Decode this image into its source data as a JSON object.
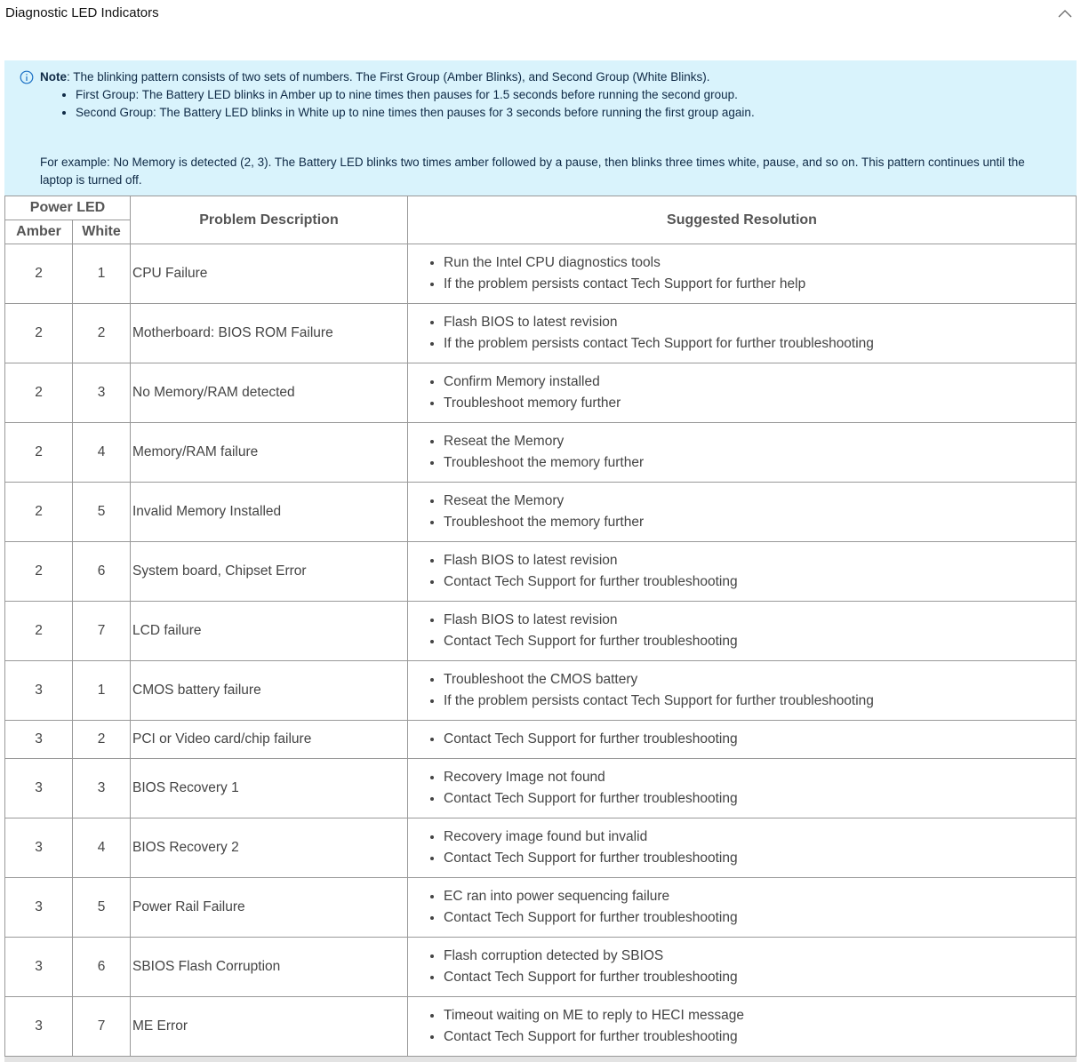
{
  "section": {
    "title": "Diagnostic LED Indicators",
    "collapse_icon": "chevron-up-icon"
  },
  "note": {
    "label": "Note",
    "text": ": The blinking pattern consists of two sets of numbers. The First Group (Amber Blinks), and Second Group (White Blinks).",
    "bullets": [
      "First Group: The Battery LED blinks in Amber up to nine times then pauses for 1.5 seconds before running the second group.",
      "Second Group: The Battery LED blinks in White up to nine times then pauses for 3 seconds before running the first group again."
    ],
    "example": "For example: No Memory is detected (2, 3). The Battery LED blinks two times amber followed by a pause, then blinks three times white, pause, and so on. This pattern continues until the laptop is turned off.",
    "icon": "info-icon",
    "background": "#d9f3fc"
  },
  "table": {
    "headers": {
      "power_led": "Power LED",
      "amber": "Amber",
      "white": "White",
      "problem": "Problem Description",
      "resolution": "Suggested Resolution"
    },
    "rows": [
      {
        "amber": "2",
        "white": "1",
        "problem": "CPU Failure",
        "resolution": [
          "Run the Intel CPU diagnostics tools",
          "If the problem persists contact Tech Support for further help"
        ]
      },
      {
        "amber": "2",
        "white": "2",
        "problem": "Motherboard: BIOS ROM Failure",
        "resolution": [
          "Flash BIOS to latest revision",
          "If the problem persists contact Tech Support for further troubleshooting"
        ]
      },
      {
        "amber": "2",
        "white": "3",
        "problem": "No Memory/RAM detected",
        "resolution": [
          "Confirm Memory installed",
          "Troubleshoot memory further"
        ]
      },
      {
        "amber": "2",
        "white": "4",
        "problem": "Memory/RAM failure",
        "resolution": [
          "Reseat the Memory",
          "Troubleshoot the memory further"
        ]
      },
      {
        "amber": "2",
        "white": "5",
        "problem": "Invalid Memory Installed",
        "resolution": [
          "Reseat the Memory",
          "Troubleshoot the memory further"
        ]
      },
      {
        "amber": "2",
        "white": "6",
        "problem": "System board, Chipset Error",
        "resolution": [
          "Flash BIOS to latest revision",
          "Contact Tech Support for further troubleshooting"
        ]
      },
      {
        "amber": "2",
        "white": "7",
        "problem": "LCD failure",
        "resolution": [
          "Flash BIOS to latest revision",
          "Contact Tech Support for further troubleshooting"
        ]
      },
      {
        "amber": "3",
        "white": "1",
        "problem": "CMOS battery failure",
        "resolution": [
          "Troubleshoot the CMOS battery",
          "If the problem persists contact Tech Support for further troubleshooting"
        ]
      },
      {
        "amber": "3",
        "white": "2",
        "problem": "PCI or Video card/chip failure",
        "resolution": [
          "Contact Tech Support for further troubleshooting"
        ]
      },
      {
        "amber": "3",
        "white": "3",
        "problem": "BIOS Recovery 1",
        "resolution": [
          "Recovery Image not found",
          "Contact Tech Support for further troubleshooting"
        ]
      },
      {
        "amber": "3",
        "white": "4",
        "problem": "BIOS Recovery 2",
        "resolution": [
          "Recovery image found but invalid",
          "Contact Tech Support for further troubleshooting"
        ]
      },
      {
        "amber": "3",
        "white": "5",
        "problem": "Power Rail Failure",
        "resolution": [
          "EC ran into power sequencing failure",
          "Contact Tech Support for further troubleshooting"
        ]
      },
      {
        "amber": "3",
        "white": "6",
        "problem": "SBIOS Flash Corruption",
        "resolution": [
          "Flash corruption detected by SBIOS",
          "Contact Tech Support for further troubleshooting"
        ]
      },
      {
        "amber": "3",
        "white": "7",
        "problem": "ME Error",
        "resolution": [
          "Timeout waiting on ME to reply to HECI message",
          "Contact Tech Support for further troubleshooting"
        ]
      }
    ]
  }
}
